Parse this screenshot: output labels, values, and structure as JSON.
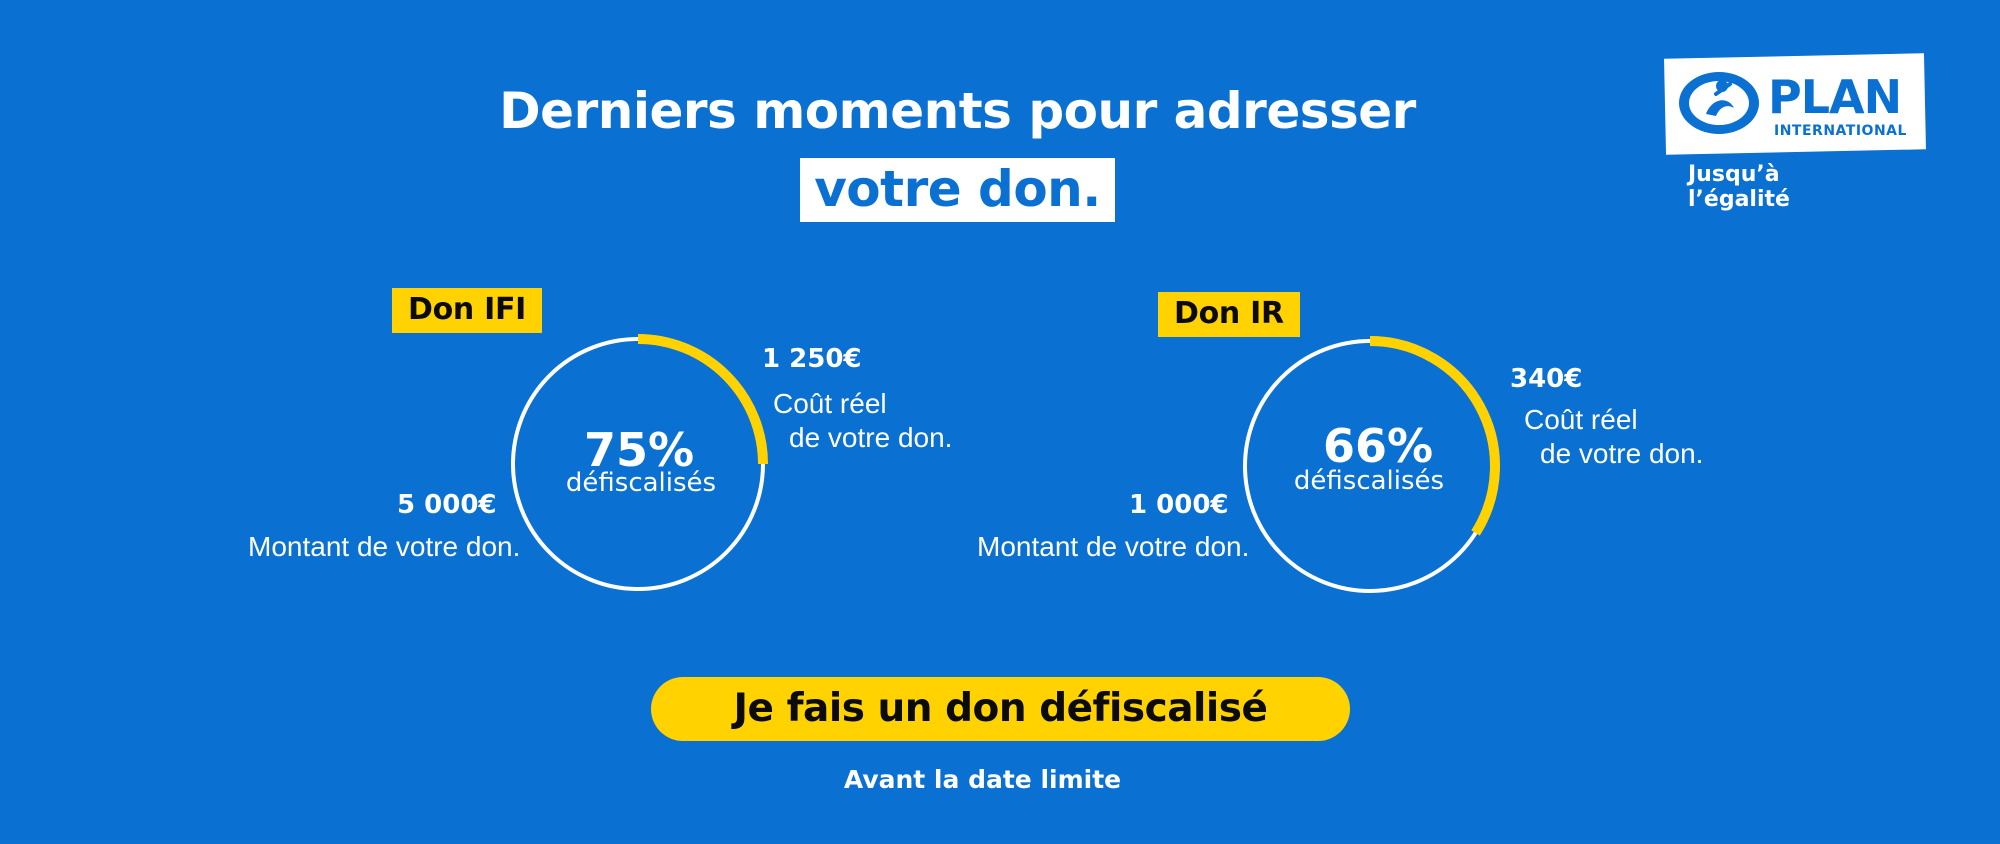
{
  "headline": {
    "line1": "Derniers moments pour adresser",
    "line2": "votre don."
  },
  "logo": {
    "brand": "PLAN",
    "sub": "INTERNATIONAL",
    "tagline": "Jusqu’à l’égalité"
  },
  "cards": [
    {
      "tag": "Don IFI",
      "percent_fraction": 0.75,
      "percent_text": "75%",
      "percent_sub": "défiscalisés",
      "cost_amount": "1 250€",
      "cost_line1": "Coût réel",
      "cost_line2": "de votre don.",
      "donation_amount": "5 000€",
      "donation_caption": "Montant de votre don."
    },
    {
      "tag": "Don IR",
      "percent_fraction": 0.66,
      "percent_text": "66%",
      "percent_sub": "défiscalisés",
      "cost_amount": "340€",
      "cost_line1": "Coût réel",
      "cost_line2": "de votre don.",
      "donation_amount": "1 000€",
      "donation_caption": "Montant de votre don."
    }
  ],
  "cta": {
    "label": "Je fais un don défiscalisé",
    "sub": "Avant la date limite"
  },
  "colors": {
    "background": "#0a70d2",
    "accent": "#ffd200",
    "ring": "#ffffff"
  }
}
